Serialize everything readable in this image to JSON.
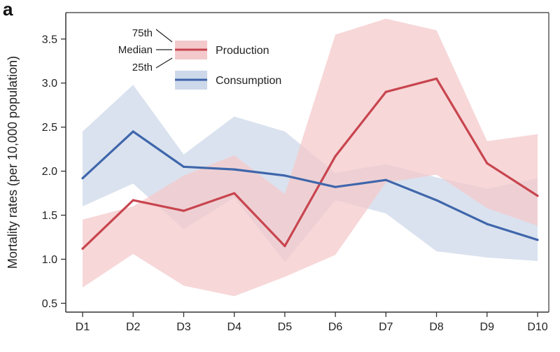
{
  "panel_label": "a",
  "chart_data": {
    "type": "line",
    "title": "",
    "xlabel": "",
    "ylabel": "Mortality rates (per 10,000 population)",
    "categories": [
      "D1",
      "D2",
      "D3",
      "D4",
      "D5",
      "D6",
      "D7",
      "D8",
      "D9",
      "D10"
    ],
    "ylim": [
      0.4,
      3.8
    ],
    "yticks": [
      0.5,
      1.0,
      1.5,
      2.0,
      2.5,
      3.0,
      3.5
    ],
    "ytick_labels": [
      "0.5",
      "1.0",
      "1.5",
      "2.0",
      "2.5",
      "3.0",
      "3.5"
    ],
    "grid": false,
    "series": [
      {
        "name": "Production",
        "color": "#c8454f",
        "band_color": "#f4c9cb",
        "median": [
          1.12,
          1.67,
          1.55,
          1.75,
          1.15,
          2.17,
          2.9,
          3.05,
          2.09,
          1.72
        ],
        "p25": [
          0.68,
          1.06,
          0.7,
          0.58,
          0.8,
          1.05,
          1.87,
          1.96,
          1.58,
          1.38
        ],
        "p75": [
          1.45,
          1.6,
          1.95,
          2.18,
          1.74,
          3.55,
          3.73,
          3.6,
          2.34,
          2.42
        ]
      },
      {
        "name": "Consumption",
        "color": "#3f66ab",
        "band_color": "#cdd8ea",
        "median": [
          1.92,
          2.45,
          2.05,
          2.02,
          1.95,
          1.82,
          1.9,
          1.67,
          1.4,
          1.22
        ],
        "p25": [
          1.6,
          1.86,
          1.34,
          1.7,
          0.97,
          1.67,
          1.52,
          1.09,
          1.02,
          0.98
        ],
        "p75": [
          2.45,
          2.98,
          2.19,
          2.62,
          2.45,
          1.98,
          2.08,
          1.93,
          1.8,
          1.92
        ]
      }
    ],
    "legend": {
      "placement": "top-left",
      "key_labels": [
        "75th",
        "Median",
        "25th"
      ],
      "entries": [
        "Production",
        "Consumption"
      ]
    }
  }
}
